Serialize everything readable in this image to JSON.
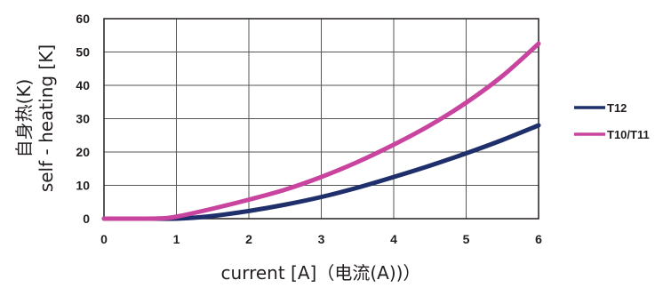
{
  "chart_data": {
    "type": "line",
    "title": "",
    "xlabel": "current [A]（电流(A))）",
    "ylabel_lines": [
      "自身热(K)",
      "self - heating [K]"
    ],
    "xlim": [
      0,
      6
    ],
    "ylim": [
      0,
      60
    ],
    "x_ticks": [
      "0",
      "1",
      "2",
      "3",
      "4",
      "5",
      "6"
    ],
    "y_ticks": [
      "0",
      "10",
      "20",
      "30",
      "40",
      "50",
      "60"
    ],
    "grid": true,
    "legend_position": "right",
    "series": [
      {
        "name": "T12",
        "color": "#1f2f6b",
        "x": [
          0,
          0.5,
          1.0,
          1.25,
          1.5,
          2.0,
          2.5,
          3.0,
          3.5,
          4.0,
          4.5,
          5.0,
          5.5,
          6.0
        ],
        "y": [
          0,
          0,
          0,
          0.3,
          0.8,
          2.3,
          4.2,
          6.5,
          9.3,
          12.5,
          15.9,
          19.6,
          23.6,
          28.0
        ]
      },
      {
        "name": "T10/T11",
        "color": "#c8449f",
        "x": [
          0,
          0.5,
          0.8,
          1.0,
          1.5,
          2.0,
          2.5,
          3.0,
          3.5,
          4.0,
          4.5,
          5.0,
          5.5,
          6.0
        ],
        "y": [
          0,
          0,
          0.1,
          0.6,
          3.0,
          5.7,
          8.7,
          12.5,
          17.0,
          22.2,
          28.0,
          34.8,
          42.8,
          52.5
        ]
      }
    ]
  }
}
